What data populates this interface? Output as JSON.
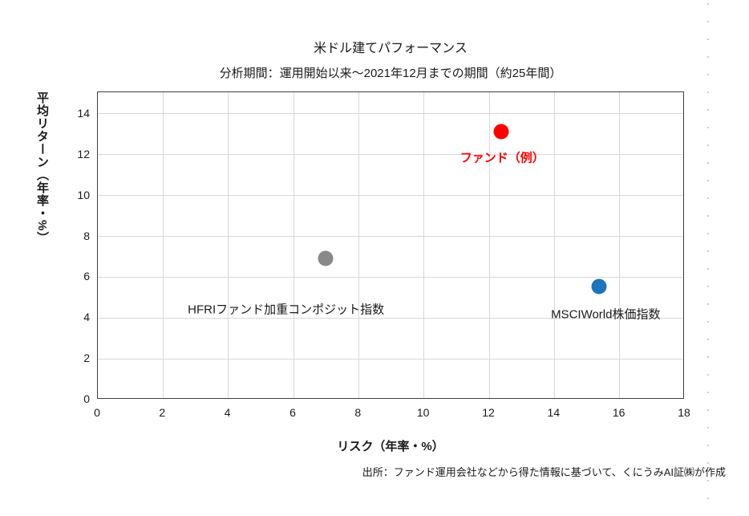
{
  "title": "米ドル建てパフォーマンス",
  "subtitle": "分析期間：運用開始以来～2021年12月までの期間（約25年間）",
  "source": "出所：ファンド運用会社などから得た情報に基づいて、くにうみAI証㈱が作成",
  "colors": {
    "background": "#ffffff",
    "gridline": "#d9d9d9",
    "axis_border": "#3f3f3f",
    "text": "#1a1a1a",
    "fund_red": "#ff0000",
    "hfri_gray": "#898989",
    "msci_blue": "#1d74bd"
  },
  "chart_data": {
    "type": "scatter",
    "title": "米ドル建てパフォーマンス",
    "subtitle": "分析期間：運用開始以来～2021年12月までの期間（約25年間）",
    "xlabel": "リスク（年率・%）",
    "ylabel": "平均リターン（年率・%）",
    "xlim": [
      0,
      18
    ],
    "ylim": [
      0,
      15.06
    ],
    "x_ticks": [
      0,
      2,
      4,
      6,
      8,
      10,
      12,
      14,
      16,
      18
    ],
    "y_ticks": [
      0,
      2,
      4,
      6,
      8,
      10,
      12,
      14
    ],
    "grid": true,
    "legend": "none",
    "series": [
      {
        "key": "hfri",
        "label": "HFRIファンド加重コンポジット指数",
        "x": 7.0,
        "y": 6.9,
        "color": "#898989",
        "label_color": "#1a1a1a",
        "label_bold": false,
        "label_dx": -49,
        "label_dy": 63
      },
      {
        "key": "msci",
        "label": "MSCIWorld株価指数",
        "x": 15.4,
        "y": 5.5,
        "color": "#1d74bd",
        "label_color": "#1a1a1a",
        "label_bold": false,
        "label_dx": 8,
        "label_dy": 34
      },
      {
        "key": "fund",
        "label": "ファンド（例）",
        "x": 12.4,
        "y": 13.1,
        "color": "#ff0000",
        "label_color": "#ff0000",
        "label_bold": true,
        "label_dx": 1,
        "label_dy": 32
      }
    ]
  }
}
